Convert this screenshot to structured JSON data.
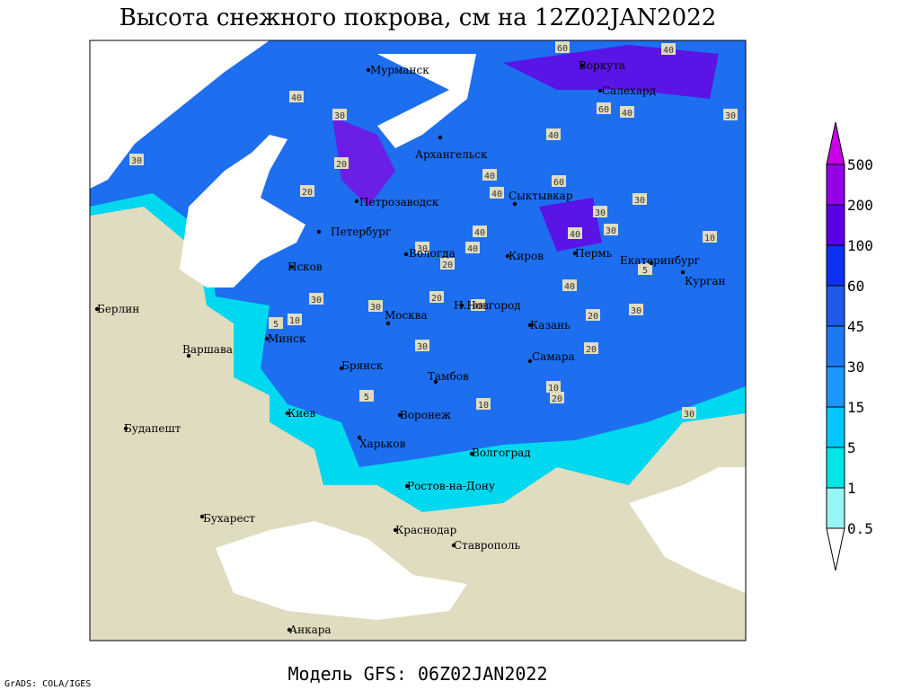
{
  "header": {
    "title": "Высота снежного покрова, см на 12Z02JAN2022"
  },
  "footer": {
    "model": "Модель GFS: 06Z02JAN2022",
    "credit": "GrADS: COLA/IGES"
  },
  "cities": [
    "Мурманск",
    "Воркута",
    "Салехард",
    "Архангельск",
    "Петрозаводск",
    "Сыктывкар",
    "Петербург",
    "Вологда",
    "Киров",
    "Пермь",
    "Екатеринбург",
    "Курган",
    "Псков",
    "Берлин",
    "Н.Новгород",
    "Москва",
    "Казань",
    "Минск",
    "Варшава",
    "Самара",
    "Брянск",
    "Тамбов",
    "Киев",
    "Воронеж",
    "Будапешт",
    "Харьков",
    "Волгоград",
    "Ростов-на-Дону",
    "Бухарест",
    "Краснодар",
    "Ставрополь",
    "Анкара"
  ],
  "contour_labels": [
    40,
    60,
    40,
    30,
    60,
    40,
    40,
    30,
    20,
    30,
    20,
    40,
    40,
    60,
    30,
    30,
    40,
    30,
    40,
    30,
    40,
    20,
    10,
    5,
    40,
    30,
    30,
    20,
    40,
    30,
    20,
    30,
    5,
    10,
    20,
    10,
    5,
    10,
    20,
    30
  ],
  "colorbar": {
    "levels": [
      0.5,
      1,
      5,
      15,
      30,
      45,
      60,
      100,
      200,
      500
    ],
    "colors": [
      "#ffffff",
      "#96f5f5",
      "#00e6e6",
      "#00c8ff",
      "#1e96ff",
      "#1e78f0",
      "#1e5ae6",
      "#0a32f0",
      "#5a00e6",
      "#9600e6",
      "#c800e6"
    ]
  }
}
